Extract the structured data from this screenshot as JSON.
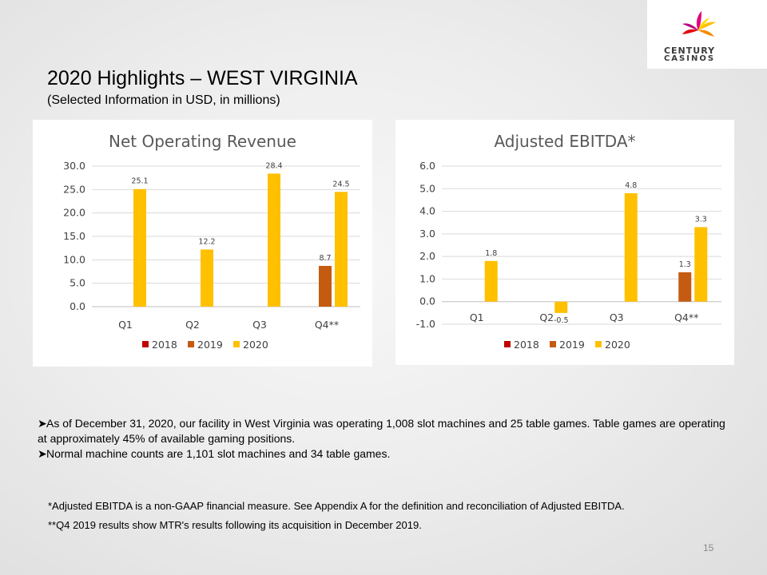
{
  "logo": {
    "line1": "CENTURY",
    "line2": "CASINOS"
  },
  "header": {
    "title": "2020 Highlights – WEST VIRGINIA",
    "subtitle": "(Selected Information in USD, in millions)"
  },
  "colors": {
    "2018": "#c00000",
    "2019": "#c55a11",
    "2020": "#ffc000"
  },
  "chart_data": [
    {
      "type": "bar",
      "title": "Net Operating Revenue",
      "categories": [
        "Q1",
        "Q2",
        "Q3",
        "Q4**"
      ],
      "series": [
        {
          "name": "2018",
          "values": [
            null,
            null,
            null,
            null
          ]
        },
        {
          "name": "2019",
          "values": [
            null,
            null,
            null,
            8.7
          ]
        },
        {
          "name": "2020",
          "values": [
            25.1,
            12.2,
            28.4,
            24.5
          ]
        }
      ],
      "data_labels": {
        "2019": [
          "",
          "",
          "",
          "8.7"
        ],
        "2020": [
          "25.1",
          "12.2",
          "28.4",
          "24.5"
        ]
      },
      "yticks": [
        "0.0",
        "5.0",
        "10.0",
        "15.0",
        "20.0",
        "25.0",
        "30.0"
      ],
      "ylim": [
        0,
        30
      ],
      "xlabel": "",
      "ylabel": "",
      "grid": true,
      "legend": "bottom"
    },
    {
      "type": "bar",
      "title": "Adjusted EBITDA*",
      "categories": [
        "Q1",
        "Q2",
        "Q3",
        "Q4**"
      ],
      "series": [
        {
          "name": "2018",
          "values": [
            null,
            null,
            null,
            null
          ]
        },
        {
          "name": "2019",
          "values": [
            null,
            null,
            null,
            1.3
          ]
        },
        {
          "name": "2020",
          "values": [
            1.8,
            -0.5,
            4.8,
            3.3
          ]
        }
      ],
      "data_labels": {
        "2019": [
          "",
          "",
          "",
          "1.3"
        ],
        "2020": [
          "1.8",
          "-0.5",
          "4.8",
          "3.3"
        ]
      },
      "yticks": [
        "-1.0",
        "0.0",
        "1.0",
        "2.0",
        "3.0",
        "4.0",
        "5.0",
        "6.0"
      ],
      "ylim": [
        -1,
        6
      ],
      "xlabel": "",
      "ylabel": "",
      "grid": true,
      "legend": "bottom"
    }
  ],
  "bullets": [
    "As of December 31, 2020, our facility in West Virginia was operating 1,008 slot machines and 25 table games. Table games are operating at approximately 45% of available gaming positions.",
    "Normal machine counts are 1,101 slot machines and 34 table games."
  ],
  "footnotes": [
    "*Adjusted EBITDA is a non-GAAP financial measure. See Appendix A for the definition and reconciliation of Adjusted EBITDA.",
    "**Q4 2019 results show MTR's results following its acquisition in December 2019."
  ],
  "page_number": "15"
}
